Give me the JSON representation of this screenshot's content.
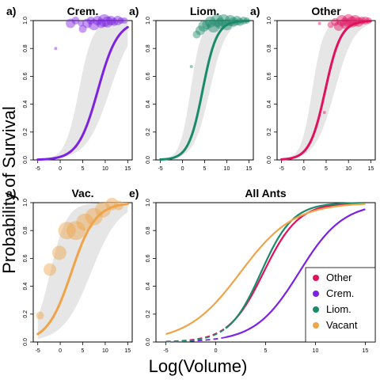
{
  "figure": {
    "ylabel": "Probability of Survival",
    "xlabel": "Log(Volume)"
  },
  "chart_data": [
    {
      "type": "scatter",
      "panel_label": "a)",
      "title": "Crem.",
      "color": "#7c22e0",
      "xlim": [
        -6,
        16
      ],
      "ylim": [
        0,
        1
      ],
      "x_ticks": [
        -5,
        0,
        5,
        10,
        15
      ],
      "y_ticks": [
        0.0,
        0.2,
        0.4,
        0.6,
        0.8,
        1.0
      ],
      "fit_x_range": [
        -5,
        15
      ],
      "fit": {
        "b0": 3.79,
        "b1": 0.453
      },
      "ci": {
        "upper_b0": 5.2,
        "upper_b1": 0.55,
        "lower_b0": 2.6,
        "lower_b1": 0.38
      },
      "points": [
        {
          "x": 2.3,
          "y": 0.98,
          "s": 6
        },
        {
          "x": 3.4,
          "y": 1.0,
          "s": 5
        },
        {
          "x": 4.6,
          "y": 0.98,
          "s": 4
        },
        {
          "x": 5.0,
          "y": 0.94,
          "s": 5
        },
        {
          "x": 6.0,
          "y": 0.98,
          "s": 6
        },
        {
          "x": 6.8,
          "y": 1.0,
          "s": 5
        },
        {
          "x": 7.5,
          "y": 0.97,
          "s": 7
        },
        {
          "x": 8.3,
          "y": 1.0,
          "s": 6
        },
        {
          "x": 9.1,
          "y": 0.98,
          "s": 6
        },
        {
          "x": 9.8,
          "y": 1.0,
          "s": 8
        },
        {
          "x": 10.5,
          "y": 0.99,
          "s": 7
        },
        {
          "x": 11.3,
          "y": 1.0,
          "s": 6
        },
        {
          "x": 12.0,
          "y": 0.99,
          "s": 5
        },
        {
          "x": 12.8,
          "y": 1.0,
          "s": 6
        },
        {
          "x": 13.5,
          "y": 1.0,
          "s": 4
        },
        {
          "x": 14.3,
          "y": 1.0,
          "s": 4
        },
        {
          "x": -1.0,
          "y": 0.8,
          "s": 2
        }
      ]
    },
    {
      "type": "scatter",
      "panel_label": "a)",
      "title": "Liom.",
      "color": "#1b8a6b",
      "xlim": [
        -6,
        16
      ],
      "ylim": [
        0,
        1
      ],
      "x_ticks": [
        -5,
        0,
        5,
        10,
        15
      ],
      "y_ticks": [
        0.0,
        0.2,
        0.4,
        0.6,
        0.8,
        1.0
      ],
      "fit_x_range": [
        -5,
        15
      ],
      "fit": {
        "b0": 2.85,
        "b1": 0.627
      },
      "ci": {
        "upper_b0": 4.0,
        "upper_b1": 0.72,
        "lower_b0": 1.8,
        "lower_b1": 0.55
      },
      "points": [
        {
          "x": 2.0,
          "y": 0.67,
          "s": 2
        },
        {
          "x": 3.2,
          "y": 0.9,
          "s": 5
        },
        {
          "x": 4.0,
          "y": 0.93,
          "s": 6
        },
        {
          "x": 4.8,
          "y": 0.96,
          "s": 7
        },
        {
          "x": 5.5,
          "y": 0.97,
          "s": 6
        },
        {
          "x": 6.3,
          "y": 0.99,
          "s": 7
        },
        {
          "x": 7.0,
          "y": 0.96,
          "s": 8
        },
        {
          "x": 7.8,
          "y": 1.0,
          "s": 8
        },
        {
          "x": 8.5,
          "y": 0.98,
          "s": 7
        },
        {
          "x": 9.3,
          "y": 1.0,
          "s": 8
        },
        {
          "x": 10.0,
          "y": 0.97,
          "s": 7
        },
        {
          "x": 10.8,
          "y": 1.0,
          "s": 7
        },
        {
          "x": 11.5,
          "y": 0.99,
          "s": 6
        },
        {
          "x": 12.3,
          "y": 1.0,
          "s": 6
        },
        {
          "x": 13.0,
          "y": 0.99,
          "s": 5
        },
        {
          "x": 13.8,
          "y": 1.0,
          "s": 5
        },
        {
          "x": 14.5,
          "y": 1.0,
          "s": 4
        }
      ]
    },
    {
      "type": "scatter",
      "panel_label": "a)",
      "title": "Other",
      "color": "#e0115f",
      "xlim": [
        -6,
        16
      ],
      "ylim": [
        0,
        1
      ],
      "x_ticks": [
        -5,
        0,
        5,
        10,
        15
      ],
      "y_ticks": [
        0.0,
        0.2,
        0.4,
        0.6,
        0.8,
        1.0
      ],
      "fit_x_range": [
        -5,
        15
      ],
      "fit": {
        "b0": 2.75,
        "b1": 0.573
      },
      "ci": {
        "upper_b0": 4.0,
        "upper_b1": 0.7,
        "lower_b0": 1.6,
        "lower_b1": 0.46
      },
      "points": [
        {
          "x": 3.5,
          "y": 0.98,
          "s": 2
        },
        {
          "x": 4.6,
          "y": 0.34,
          "s": 2
        },
        {
          "x": 6.0,
          "y": 0.97,
          "s": 4
        },
        {
          "x": 7.0,
          "y": 0.99,
          "s": 5
        },
        {
          "x": 7.8,
          "y": 0.96,
          "s": 6
        },
        {
          "x": 8.5,
          "y": 1.0,
          "s": 7
        },
        {
          "x": 9.3,
          "y": 0.98,
          "s": 7
        },
        {
          "x": 10.0,
          "y": 1.0,
          "s": 8
        },
        {
          "x": 10.8,
          "y": 0.99,
          "s": 7
        },
        {
          "x": 11.5,
          "y": 1.0,
          "s": 7
        },
        {
          "x": 12.3,
          "y": 0.99,
          "s": 6
        },
        {
          "x": 13.0,
          "y": 1.0,
          "s": 5
        },
        {
          "x": 13.8,
          "y": 1.0,
          "s": 5
        },
        {
          "x": 14.5,
          "y": 1.0,
          "s": 4
        }
      ]
    },
    {
      "type": "scatter",
      "panel_label": "a)",
      "title": "Vac.",
      "color": "#f0a44a",
      "xlim": [
        -6,
        16
      ],
      "ylim": [
        0,
        1
      ],
      "x_ticks": [
        -5,
        0,
        5,
        10,
        15
      ],
      "y_ticks": [
        0.0,
        0.2,
        0.4,
        0.6,
        0.8,
        1.0
      ],
      "fit_x_range": [
        -5,
        15
      ],
      "fit": {
        "b0": 0.93,
        "b1": 0.375
      },
      "ci": {
        "upper_b0": 1.3,
        "upper_b1": 0.44,
        "lower_b0": 0.6,
        "lower_b1": 0.32
      },
      "points": [
        {
          "x": -4.5,
          "y": 0.19,
          "s": 5
        },
        {
          "x": -2.3,
          "y": 0.52,
          "s": 8
        },
        {
          "x": -0.2,
          "y": 0.64,
          "s": 9
        },
        {
          "x": 1.5,
          "y": 0.8,
          "s": 11
        },
        {
          "x": 3.5,
          "y": 0.8,
          "s": 12
        },
        {
          "x": 5.5,
          "y": 0.86,
          "s": 11
        },
        {
          "x": 7.5,
          "y": 0.9,
          "s": 11
        },
        {
          "x": 9.5,
          "y": 0.95,
          "s": 10
        },
        {
          "x": 11.5,
          "y": 0.99,
          "s": 8
        },
        {
          "x": 13.0,
          "y": 0.98,
          "s": 6
        }
      ]
    },
    {
      "type": "line",
      "panel_label": "e)",
      "title": "All Ants",
      "xlim": [
        -6,
        16
      ],
      "ylim": [
        0,
        1
      ],
      "x_ticks": [
        -5,
        0,
        5,
        10,
        15
      ],
      "y_ticks": [
        0.0,
        0.2,
        0.4,
        0.6,
        0.8,
        1.0
      ],
      "series": [
        {
          "name": "Other",
          "color": "#e0115f",
          "b0": 2.75,
          "b1": 0.573,
          "dash_x_range": [
            -5,
            1
          ],
          "solid_x_range": [
            1,
            15
          ]
        },
        {
          "name": "Crem.",
          "color": "#7c22e0",
          "b0": 3.79,
          "b1": 0.453,
          "dash_x_range": [
            -5,
            1
          ],
          "solid_x_range": [
            1,
            15
          ]
        },
        {
          "name": "Liom.",
          "color": "#1b8a6b",
          "b0": 2.85,
          "b1": 0.627,
          "dash_x_range": [
            -5,
            1
          ],
          "solid_x_range": [
            1,
            15
          ]
        },
        {
          "name": "Vacant",
          "color": "#f0a44a",
          "b0": 0.93,
          "b1": 0.375,
          "dash_x_range": [
            -5,
            -5
          ],
          "solid_x_range": [
            -5,
            15
          ]
        }
      ],
      "legend": "bottom-right"
    }
  ]
}
